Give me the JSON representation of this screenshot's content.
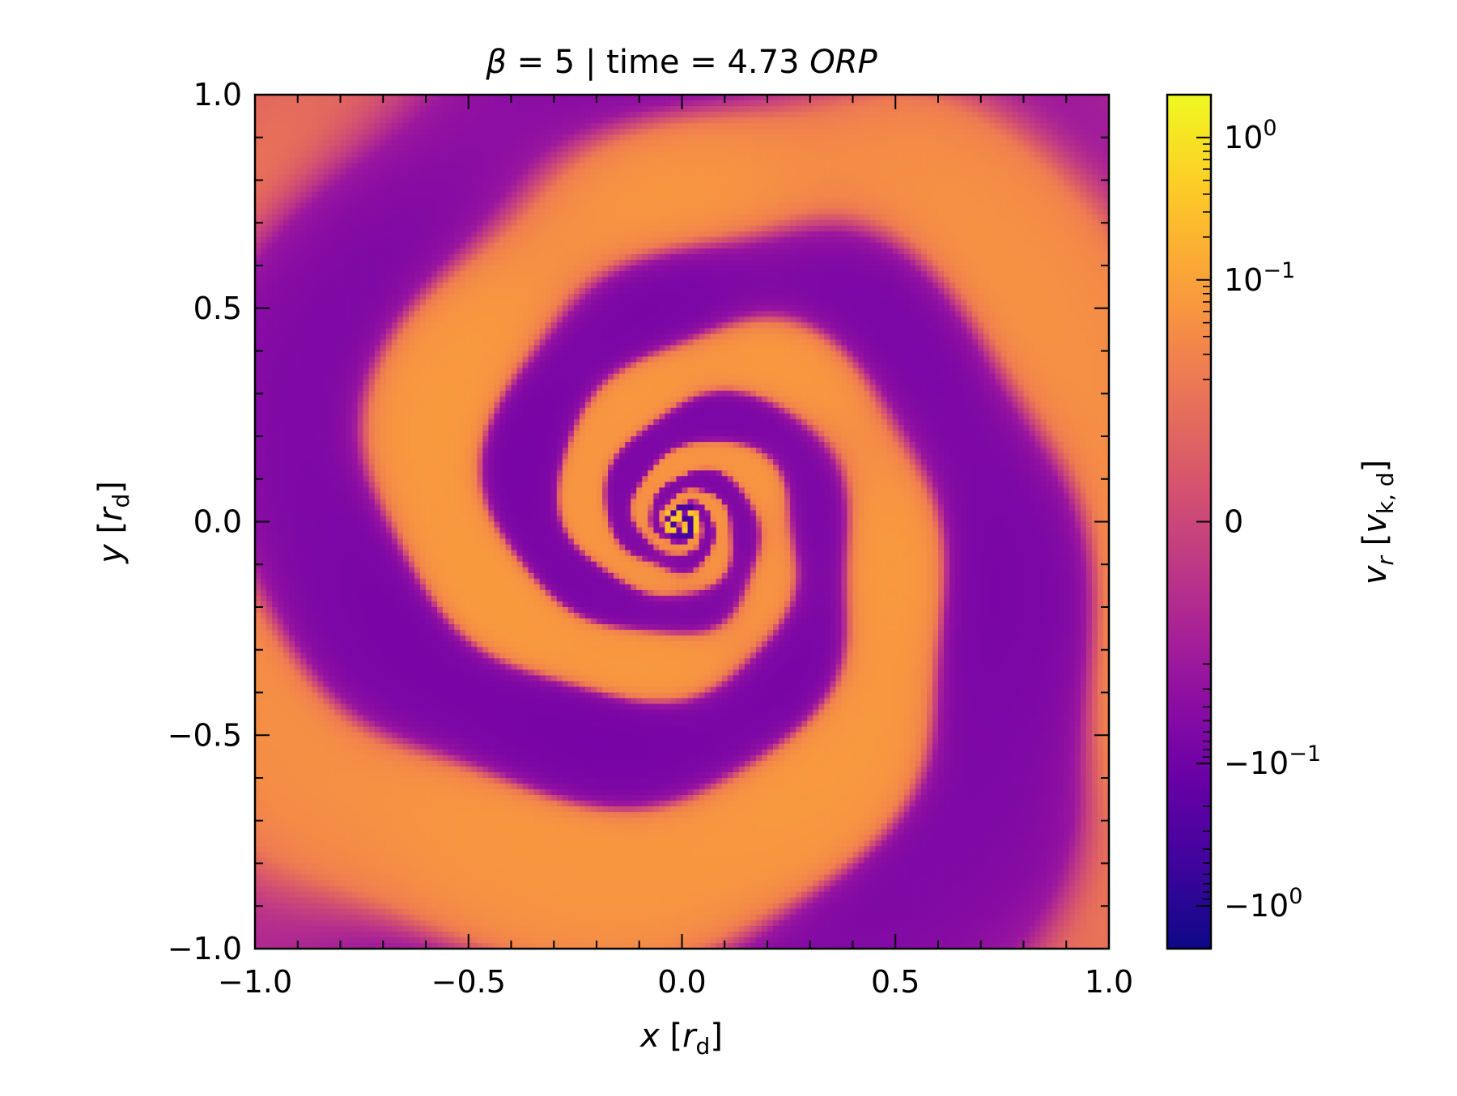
{
  "chart_data": {
    "type": "heatmap",
    "title": {
      "prefix_symbol": "β",
      "text_mid": " = 5 | time = 4.73 ",
      "text_unit": "ORP"
    },
    "xlabel": {
      "var": "x",
      "open": " [",
      "unit": "r",
      "unit_sub": "d",
      "close": "]"
    },
    "ylabel": {
      "var": "y",
      "open": " [",
      "unit": "r",
      "unit_sub": "d",
      "close": "]"
    },
    "xlim": [
      -1.0,
      1.0
    ],
    "ylim": [
      -1.0,
      1.0
    ],
    "x_ticks": [
      -1.0,
      -0.5,
      0.0,
      0.5,
      1.0
    ],
    "y_ticks": [
      -1.0,
      -0.5,
      0.0,
      0.5,
      1.0
    ],
    "x_tick_labels": [
      "−1.0",
      "−0.5",
      "0.0",
      "0.5",
      "1.0"
    ],
    "y_tick_labels": [
      "−1.0",
      "−0.5",
      "0.0",
      "0.5",
      "1.0"
    ],
    "minor_step": 0.1,
    "colormap": "plasma",
    "scale": "symlog",
    "colorbar": {
      "label": {
        "var": "v",
        "var_sub": "r",
        "open": " [",
        "unit": "v",
        "unit_sub": "k, d",
        "close": "]"
      },
      "range": [
        -2.0,
        2.0
      ],
      "linthresh": 0.02,
      "ticks": [
        {
          "value": 1.0,
          "base": "10",
          "exp": "0",
          "sign": ""
        },
        {
          "value": 0.1,
          "base": "10",
          "exp": "−1",
          "sign": ""
        },
        {
          "value": 0.0,
          "base": "0",
          "exp": "",
          "sign": ""
        },
        {
          "value": -0.1,
          "base": "10",
          "exp": "−1",
          "sign": "−"
        },
        {
          "value": -1.0,
          "base": "10",
          "exp": "0",
          "sign": "−"
        }
      ]
    },
    "field_description": "radial velocity, multi-armed spiral pattern centred at origin"
  },
  "colors": {
    "plasma": [
      "#0d0887",
      "#46039f",
      "#7201a8",
      "#9c179e",
      "#bd3786",
      "#d8576b",
      "#ed7953",
      "#fb9f3a",
      "#fdca26",
      "#f0f921"
    ]
  }
}
